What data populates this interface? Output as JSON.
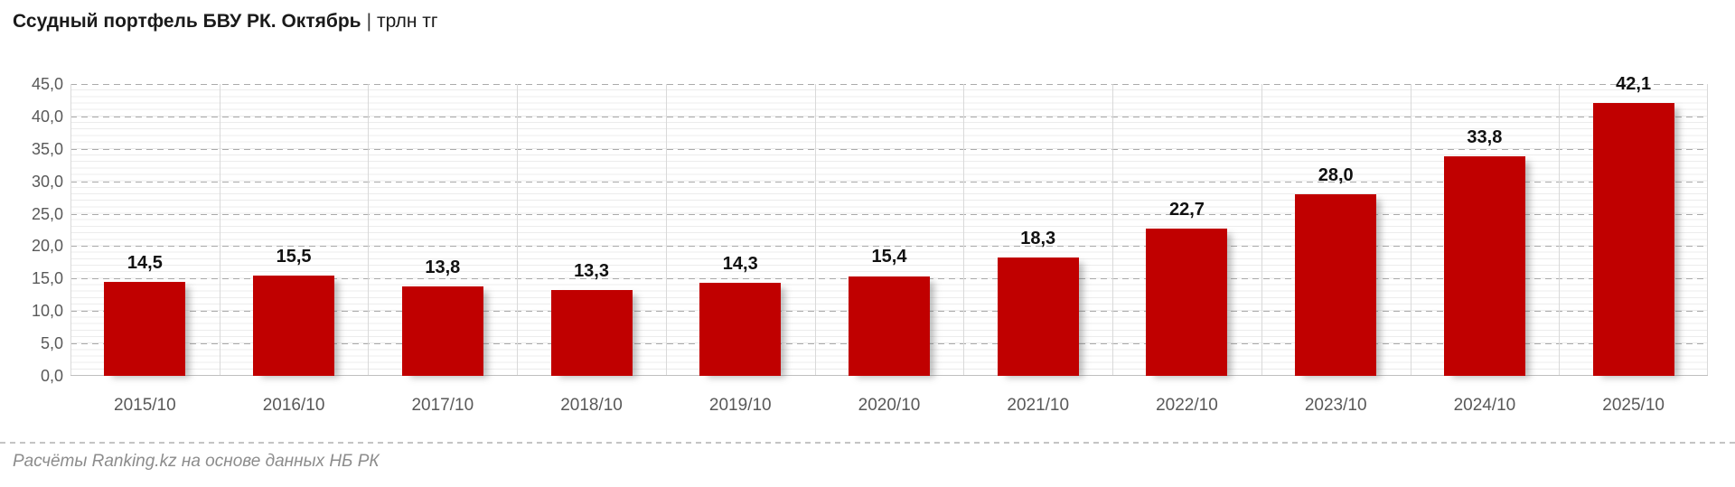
{
  "header": {
    "title": "Ссудный портфель БВУ РК. Октябрь",
    "separator": "|",
    "unit": "трлн тг"
  },
  "chart_data": {
    "type": "bar",
    "title": "Ссудный портфель БВУ РК. Октябрь",
    "unit": "трлн тг",
    "categories": [
      "2015/10",
      "2016/10",
      "2017/10",
      "2018/10",
      "2019/10",
      "2020/10",
      "2021/10",
      "2022/10",
      "2023/10",
      "2024/10",
      "2025/10"
    ],
    "values": [
      14.5,
      15.5,
      13.8,
      13.3,
      14.3,
      15.4,
      18.3,
      22.7,
      28.0,
      33.8,
      42.1
    ],
    "value_labels": [
      "14,5",
      "15,5",
      "13,8",
      "13,3",
      "14,3",
      "15,4",
      "18,3",
      "22,7",
      "28,0",
      "33,8",
      "42,1"
    ],
    "ylim": [
      0,
      45
    ],
    "ytick_step": 5,
    "ytick_labels": [
      "0,0",
      "5,0",
      "10,0",
      "15,0",
      "20,0",
      "25,0",
      "30,0",
      "35,0",
      "40,0",
      "45,0"
    ],
    "minor_grid_step": 1,
    "grid": {
      "horizontal_major": "dashed",
      "horizontal_minor": "solid-light",
      "vertical_category_separators": true
    },
    "legend": null,
    "bar_color": "#C00000"
  },
  "colors": {
    "bar": "#C00000",
    "axis_text": "#595959",
    "value_label": "#111111",
    "grid_major": "#ABABAB",
    "grid_minor": "#ECECEC",
    "vertical_separator": "#D9D9D9",
    "axis_line": "#BFBFBF",
    "divider": "#C4C4C4",
    "footer_text": "#8C8C8C"
  },
  "footer": {
    "source": "Расчёты Ranking.kz на основе данных НБ РК"
  }
}
